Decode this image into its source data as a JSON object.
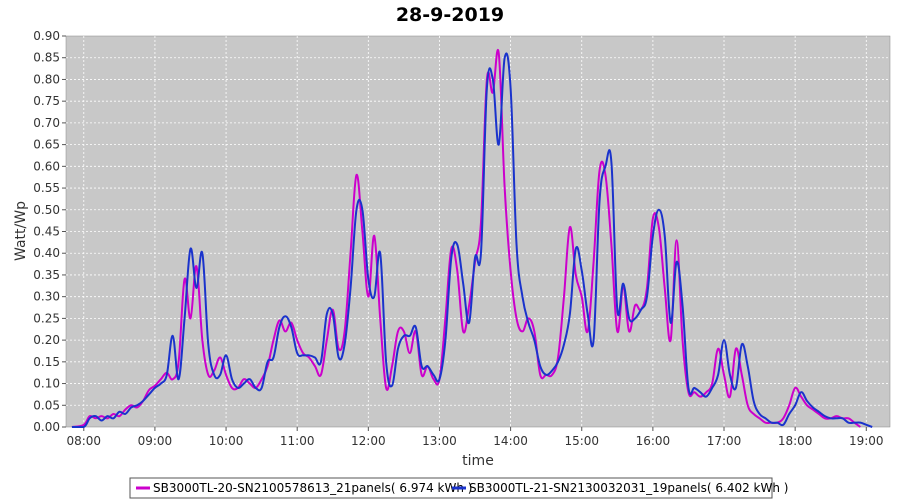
{
  "chart_data": {
    "type": "line",
    "title": "28-9-2019",
    "xlabel": "time",
    "ylabel": "Watt/Wp",
    "ylim": [
      0,
      0.9
    ],
    "xlim": [
      "07:45",
      "19:20"
    ],
    "x_ticks": [
      "08:00",
      "09:00",
      "10:00",
      "11:00",
      "12:00",
      "13:00",
      "14:00",
      "15:00",
      "16:00",
      "17:00",
      "18:00",
      "19:00"
    ],
    "y_ticks": [
      "0.00",
      "0.05",
      "0.10",
      "0.15",
      "0.20",
      "0.25",
      "0.30",
      "0.35",
      "0.40",
      "0.45",
      "0.50",
      "0.55",
      "0.60",
      "0.65",
      "0.70",
      "0.75",
      "0.80",
      "0.85",
      "0.90"
    ],
    "grid": true,
    "legend_position": "bottom",
    "colors": {
      "plot_bg": "#c8c8c8",
      "grid": "#ffffff"
    },
    "series": [
      {
        "name": "SB3000TL-20-SN2100578613_21panels( 6.974 kWh )",
        "color": "#cc00cc",
        "points": [
          [
            "07:50",
            0.0
          ],
          [
            "08:00",
            0.005
          ],
          [
            "08:05",
            0.025
          ],
          [
            "08:10",
            0.02
          ],
          [
            "08:15",
            0.025
          ],
          [
            "08:20",
            0.02
          ],
          [
            "08:25",
            0.03
          ],
          [
            "08:30",
            0.025
          ],
          [
            "08:35",
            0.04
          ],
          [
            "08:40",
            0.05
          ],
          [
            "08:45",
            0.045
          ],
          [
            "08:50",
            0.06
          ],
          [
            "08:55",
            0.085
          ],
          [
            "09:00",
            0.095
          ],
          [
            "09:05",
            0.11
          ],
          [
            "09:10",
            0.125
          ],
          [
            "09:15",
            0.11
          ],
          [
            "09:20",
            0.15
          ],
          [
            "09:25",
            0.34
          ],
          [
            "09:30",
            0.25
          ],
          [
            "09:35",
            0.37
          ],
          [
            "09:40",
            0.2
          ],
          [
            "09:45",
            0.12
          ],
          [
            "09:50",
            0.13
          ],
          [
            "09:55",
            0.16
          ],
          [
            "10:00",
            0.12
          ],
          [
            "10:05",
            0.09
          ],
          [
            "10:10",
            0.09
          ],
          [
            "10:15",
            0.11
          ],
          [
            "10:20",
            0.1
          ],
          [
            "10:25",
            0.09
          ],
          [
            "10:30",
            0.11
          ],
          [
            "10:35",
            0.14
          ],
          [
            "10:40",
            0.2
          ],
          [
            "10:45",
            0.245
          ],
          [
            "10:50",
            0.22
          ],
          [
            "10:55",
            0.24
          ],
          [
            "11:00",
            0.2
          ],
          [
            "11:05",
            0.17
          ],
          [
            "11:10",
            0.16
          ],
          [
            "11:15",
            0.14
          ],
          [
            "11:20",
            0.12
          ],
          [
            "11:25",
            0.2
          ],
          [
            "11:30",
            0.27
          ],
          [
            "11:35",
            0.18
          ],
          [
            "11:40",
            0.22
          ],
          [
            "11:45",
            0.4
          ],
          [
            "11:50",
            0.58
          ],
          [
            "11:55",
            0.45
          ],
          [
            "12:00",
            0.3
          ],
          [
            "12:05",
            0.44
          ],
          [
            "12:10",
            0.25
          ],
          [
            "12:15",
            0.09
          ],
          [
            "12:20",
            0.14
          ],
          [
            "12:25",
            0.22
          ],
          [
            "12:30",
            0.22
          ],
          [
            "12:35",
            0.17
          ],
          [
            "12:40",
            0.22
          ],
          [
            "12:45",
            0.12
          ],
          [
            "12:50",
            0.14
          ],
          [
            "12:55",
            0.11
          ],
          [
            "13:00",
            0.11
          ],
          [
            "13:05",
            0.25
          ],
          [
            "13:10",
            0.41
          ],
          [
            "13:15",
            0.36
          ],
          [
            "13:20",
            0.22
          ],
          [
            "13:25",
            0.28
          ],
          [
            "13:30",
            0.38
          ],
          [
            "13:35",
            0.47
          ],
          [
            "13:40",
            0.8
          ],
          [
            "13:45",
            0.77
          ],
          [
            "13:50",
            0.86
          ],
          [
            "13:55",
            0.55
          ],
          [
            "14:00",
            0.36
          ],
          [
            "14:05",
            0.25
          ],
          [
            "14:10",
            0.22
          ],
          [
            "14:15",
            0.25
          ],
          [
            "14:20",
            0.22
          ],
          [
            "14:25",
            0.12
          ],
          [
            "14:30",
            0.12
          ],
          [
            "14:35",
            0.12
          ],
          [
            "14:40",
            0.16
          ],
          [
            "14:45",
            0.3
          ],
          [
            "14:50",
            0.46
          ],
          [
            "14:55",
            0.35
          ],
          [
            "15:00",
            0.3
          ],
          [
            "15:05",
            0.22
          ],
          [
            "15:10",
            0.38
          ],
          [
            "15:15",
            0.59
          ],
          [
            "15:20",
            0.58
          ],
          [
            "15:25",
            0.42
          ],
          [
            "15:30",
            0.22
          ],
          [
            "15:35",
            0.32
          ],
          [
            "15:40",
            0.22
          ],
          [
            "15:45",
            0.28
          ],
          [
            "15:50",
            0.27
          ],
          [
            "15:55",
            0.32
          ],
          [
            "16:00",
            0.48
          ],
          [
            "16:05",
            0.46
          ],
          [
            "16:10",
            0.32
          ],
          [
            "16:15",
            0.2
          ],
          [
            "16:20",
            0.43
          ],
          [
            "16:25",
            0.2
          ],
          [
            "16:30",
            0.08
          ],
          [
            "16:35",
            0.08
          ],
          [
            "16:40",
            0.07
          ],
          [
            "16:45",
            0.08
          ],
          [
            "16:50",
            0.1
          ],
          [
            "16:55",
            0.18
          ],
          [
            "17:00",
            0.12
          ],
          [
            "17:05",
            0.07
          ],
          [
            "17:10",
            0.18
          ],
          [
            "17:15",
            0.12
          ],
          [
            "17:20",
            0.05
          ],
          [
            "17:25",
            0.03
          ],
          [
            "17:30",
            0.02
          ],
          [
            "17:35",
            0.01
          ],
          [
            "17:40",
            0.01
          ],
          [
            "17:45",
            0.01
          ],
          [
            "17:50",
            0.02
          ],
          [
            "17:55",
            0.05
          ],
          [
            "18:00",
            0.09
          ],
          [
            "18:05",
            0.07
          ],
          [
            "18:10",
            0.05
          ],
          [
            "18:15",
            0.04
          ],
          [
            "18:20",
            0.03
          ],
          [
            "18:25",
            0.02
          ],
          [
            "18:30",
            0.02
          ],
          [
            "18:35",
            0.025
          ],
          [
            "18:40",
            0.02
          ],
          [
            "18:45",
            0.02
          ],
          [
            "18:50",
            0.01
          ],
          [
            "18:55",
            0.0
          ]
        ]
      },
      {
        "name": "SB3000TL-21-SN2130032031_19panels( 6.402 kWh )",
        "color": "#1a33cc",
        "points": [
          [
            "07:50",
            0.0
          ],
          [
            "08:00",
            0.0
          ],
          [
            "08:05",
            0.02
          ],
          [
            "08:10",
            0.025
          ],
          [
            "08:15",
            0.015
          ],
          [
            "08:20",
            0.025
          ],
          [
            "08:25",
            0.02
          ],
          [
            "08:30",
            0.035
          ],
          [
            "08:35",
            0.03
          ],
          [
            "08:40",
            0.045
          ],
          [
            "08:45",
            0.05
          ],
          [
            "08:50",
            0.06
          ],
          [
            "08:55",
            0.075
          ],
          [
            "09:00",
            0.09
          ],
          [
            "09:05",
            0.1
          ],
          [
            "09:10",
            0.12
          ],
          [
            "09:15",
            0.21
          ],
          [
            "09:20",
            0.11
          ],
          [
            "09:25",
            0.25
          ],
          [
            "09:30",
            0.41
          ],
          [
            "09:35",
            0.32
          ],
          [
            "09:40",
            0.4
          ],
          [
            "09:45",
            0.19
          ],
          [
            "09:50",
            0.12
          ],
          [
            "09:55",
            0.12
          ],
          [
            "10:00",
            0.165
          ],
          [
            "10:05",
            0.11
          ],
          [
            "10:10",
            0.09
          ],
          [
            "10:15",
            0.1
          ],
          [
            "10:20",
            0.11
          ],
          [
            "10:25",
            0.09
          ],
          [
            "10:30",
            0.09
          ],
          [
            "10:35",
            0.15
          ],
          [
            "10:40",
            0.16
          ],
          [
            "10:45",
            0.23
          ],
          [
            "10:50",
            0.255
          ],
          [
            "10:55",
            0.23
          ],
          [
            "11:00",
            0.17
          ],
          [
            "11:05",
            0.165
          ],
          [
            "11:10",
            0.165
          ],
          [
            "11:15",
            0.16
          ],
          [
            "11:20",
            0.15
          ],
          [
            "11:25",
            0.26
          ],
          [
            "11:30",
            0.26
          ],
          [
            "11:35",
            0.16
          ],
          [
            "11:40",
            0.19
          ],
          [
            "11:45",
            0.32
          ],
          [
            "11:50",
            0.5
          ],
          [
            "11:55",
            0.5
          ],
          [
            "12:00",
            0.34
          ],
          [
            "12:05",
            0.3
          ],
          [
            "12:10",
            0.4
          ],
          [
            "12:15",
            0.15
          ],
          [
            "12:20",
            0.095
          ],
          [
            "12:25",
            0.18
          ],
          [
            "12:30",
            0.21
          ],
          [
            "12:35",
            0.21
          ],
          [
            "12:40",
            0.23
          ],
          [
            "12:45",
            0.14
          ],
          [
            "12:50",
            0.14
          ],
          [
            "12:55",
            0.12
          ],
          [
            "13:00",
            0.11
          ],
          [
            "13:05",
            0.2
          ],
          [
            "13:10",
            0.39
          ],
          [
            "13:15",
            0.42
          ],
          [
            "13:20",
            0.33
          ],
          [
            "13:25",
            0.24
          ],
          [
            "13:30",
            0.39
          ],
          [
            "13:35",
            0.4
          ],
          [
            "13:40",
            0.78
          ],
          [
            "13:45",
            0.8
          ],
          [
            "13:50",
            0.65
          ],
          [
            "13:55",
            0.85
          ],
          [
            "14:00",
            0.78
          ],
          [
            "14:05",
            0.42
          ],
          [
            "14:10",
            0.3
          ],
          [
            "14:15",
            0.24
          ],
          [
            "14:20",
            0.2
          ],
          [
            "14:25",
            0.14
          ],
          [
            "14:30",
            0.12
          ],
          [
            "14:35",
            0.13
          ],
          [
            "14:40",
            0.15
          ],
          [
            "14:45",
            0.19
          ],
          [
            "14:50",
            0.26
          ],
          [
            "14:55",
            0.41
          ],
          [
            "15:00",
            0.36
          ],
          [
            "15:05",
            0.26
          ],
          [
            "15:10",
            0.2
          ],
          [
            "15:15",
            0.52
          ],
          [
            "15:20",
            0.6
          ],
          [
            "15:25",
            0.61
          ],
          [
            "15:30",
            0.27
          ],
          [
            "15:35",
            0.33
          ],
          [
            "15:40",
            0.25
          ],
          [
            "15:45",
            0.25
          ],
          [
            "15:50",
            0.27
          ],
          [
            "15:55",
            0.3
          ],
          [
            "16:00",
            0.44
          ],
          [
            "16:05",
            0.5
          ],
          [
            "16:10",
            0.44
          ],
          [
            "16:15",
            0.24
          ],
          [
            "16:20",
            0.38
          ],
          [
            "16:25",
            0.28
          ],
          [
            "16:30",
            0.09
          ],
          [
            "16:35",
            0.09
          ],
          [
            "16:40",
            0.08
          ],
          [
            "16:45",
            0.07
          ],
          [
            "16:50",
            0.09
          ],
          [
            "16:55",
            0.12
          ],
          [
            "17:00",
            0.2
          ],
          [
            "17:05",
            0.12
          ],
          [
            "17:10",
            0.09
          ],
          [
            "17:15",
            0.19
          ],
          [
            "17:20",
            0.14
          ],
          [
            "17:25",
            0.06
          ],
          [
            "17:30",
            0.03
          ],
          [
            "17:35",
            0.02
          ],
          [
            "17:40",
            0.01
          ],
          [
            "17:45",
            0.01
          ],
          [
            "17:50",
            0.005
          ],
          [
            "17:55",
            0.03
          ],
          [
            "18:00",
            0.05
          ],
          [
            "18:05",
            0.08
          ],
          [
            "18:10",
            0.06
          ],
          [
            "18:15",
            0.045
          ],
          [
            "18:20",
            0.035
          ],
          [
            "18:25",
            0.025
          ],
          [
            "18:30",
            0.02
          ],
          [
            "18:35",
            0.02
          ],
          [
            "18:40",
            0.02
          ],
          [
            "18:45",
            0.01
          ],
          [
            "18:50",
            0.01
          ],
          [
            "18:55",
            0.01
          ],
          [
            "19:00",
            0.005
          ],
          [
            "19:05",
            0.0
          ]
        ]
      }
    ]
  }
}
